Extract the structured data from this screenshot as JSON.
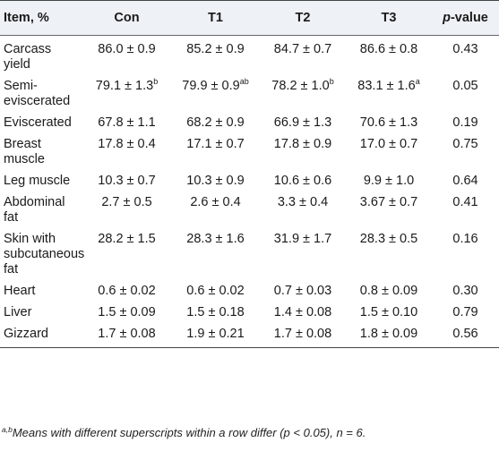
{
  "header": {
    "item": "Item, %",
    "con": "Con",
    "t1": "T1",
    "t2": "T2",
    "t3": "T3",
    "p_value_italic": "p",
    "p_value_suffix": "-value"
  },
  "rows": [
    {
      "item": "Carcass yield",
      "con": "86.0 ± 0.9",
      "con_sup": "",
      "t1": "85.2 ± 0.9",
      "t1_sup": "",
      "t2": "84.7 ± 0.7",
      "t2_sup": "",
      "t3": "86.6 ± 0.8",
      "t3_sup": "",
      "p": "0.43"
    },
    {
      "item": "Semi-eviscerated",
      "con": "79.1 ± 1.3",
      "con_sup": "b",
      "t1": "79.9 ± 0.9",
      "t1_sup": "ab",
      "t2": "78.2 ± 1.0",
      "t2_sup": "b",
      "t3": "83.1 ± 1.6",
      "t3_sup": "a",
      "p": "0.05"
    },
    {
      "item": "Eviscerated",
      "con": "67.8 ± 1.1",
      "con_sup": "",
      "t1": "68.2 ± 0.9",
      "t1_sup": "",
      "t2": "66.9 ± 1.3",
      "t2_sup": "",
      "t3": "70.6 ± 1.3",
      "t3_sup": "",
      "p": "0.19"
    },
    {
      "item": "Breast muscle",
      "con": "17.8 ± 0.4",
      "con_sup": "",
      "t1": "17.1 ± 0.7",
      "t1_sup": "",
      "t2": "17.8 ± 0.9",
      "t2_sup": "",
      "t3": "17.0 ± 0.7",
      "t3_sup": "",
      "p": "0.75"
    },
    {
      "item": "Leg muscle",
      "con": "10.3 ± 0.7",
      "con_sup": "",
      "t1": "10.3 ± 0.9",
      "t1_sup": "",
      "t2": "10.6 ± 0.6",
      "t2_sup": "",
      "t3": "9.9 ± 1.0",
      "t3_sup": "",
      "p": "0.64"
    },
    {
      "item": "Abdominal fat",
      "con": "2.7 ± 0.5",
      "con_sup": "",
      "t1": "2.6 ± 0.4",
      "t1_sup": "",
      "t2": "3.3 ± 0.4",
      "t2_sup": "",
      "t3": "3.67 ± 0.7",
      "t3_sup": "",
      "p": "0.41"
    },
    {
      "item": "Skin with subcutaneous fat",
      "con": "28.2 ± 1.5",
      "con_sup": "",
      "t1": "28.3 ± 1.6",
      "t1_sup": "",
      "t2": "31.9 ± 1.7",
      "t2_sup": "",
      "t3": "28.3 ± 0.5",
      "t3_sup": "",
      "p": "0.16"
    },
    {
      "item": "Heart",
      "con": "0.6 ± 0.02",
      "con_sup": "",
      "t1": "0.6 ± 0.02",
      "t1_sup": "",
      "t2": "0.7 ± 0.03",
      "t2_sup": "",
      "t3": "0.8 ± 0.09",
      "t3_sup": "",
      "p": "0.30"
    },
    {
      "item": "Liver",
      "con": "1.5 ± 0.09",
      "con_sup": "",
      "t1": "1.5 ± 0.18",
      "t1_sup": "",
      "t2": "1.4 ± 0.08",
      "t2_sup": "",
      "t3": "1.5 ± 0.10",
      "t3_sup": "",
      "p": "0.79"
    },
    {
      "item": "Gizzard",
      "con": "1.7 ± 0.08",
      "con_sup": "",
      "t1": "1.9 ± 0.21",
      "t1_sup": "",
      "t2": "1.7 ± 0.08",
      "t2_sup": "",
      "t3": "1.8 ± 0.09",
      "t3_sup": "",
      "p": "0.56"
    }
  ],
  "footnote": {
    "sup": "a,b",
    "text": "Means with different superscripts within a row differ (p < 0.05), n = 6."
  }
}
